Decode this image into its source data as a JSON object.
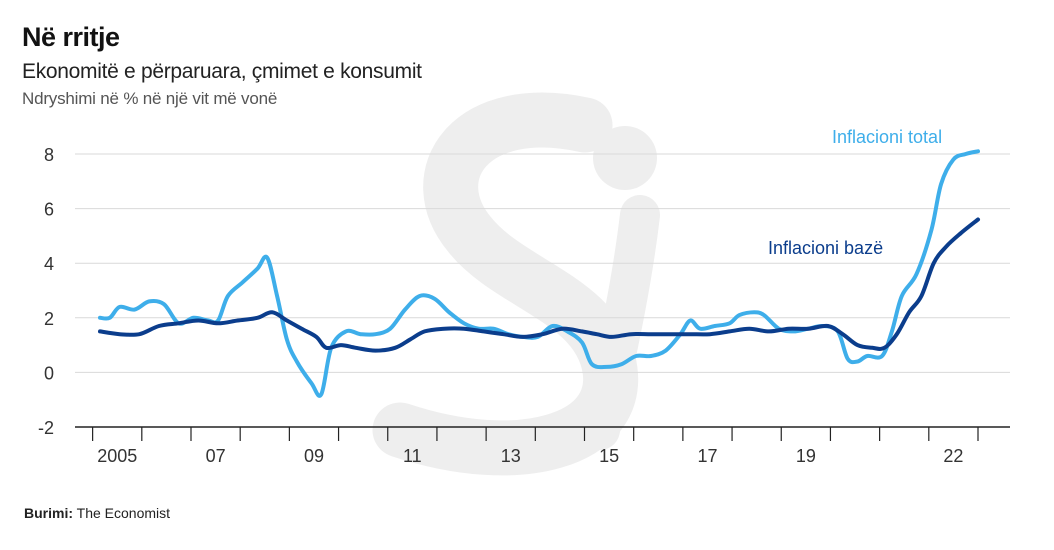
{
  "header": {
    "title": "Në rritje",
    "subtitle": "Ekonomitë e përparuara, çmimet e konsumit",
    "unit_label": "Ndryshimi në % në një vit më vonë"
  },
  "source": {
    "label": "Burimi:",
    "text": "The Economist"
  },
  "colors": {
    "total": "#3eaeea",
    "core": "#0b3d8c",
    "grid": "#d9d9d9",
    "axis": "#222222",
    "watermark": "#ececec"
  },
  "chart_data": {
    "type": "line",
    "title": "Në rritje",
    "subtitle": "Ekonomitë e përparuara, çmimet e konsumit",
    "ylabel": "Ndryshimi në % në një vit më vonë",
    "xlabel": "",
    "ylim": [
      -2,
      8
    ],
    "yticks": [
      -2,
      0,
      2,
      4,
      6,
      8
    ],
    "xlim": [
      2004.0,
      2022.9
    ],
    "xtick_positions": [
      2005,
      2007,
      2009,
      2011,
      2013,
      2015,
      2017,
      2019,
      2021,
      2022
    ],
    "xtick_labels": [
      {
        "x": 2005,
        "label": "2005"
      },
      {
        "x": 2007,
        "label": "07"
      },
      {
        "x": 2009,
        "label": "09"
      },
      {
        "x": 2011,
        "label": "11"
      },
      {
        "x": 2013,
        "label": "13"
      },
      {
        "x": 2015,
        "label": "15"
      },
      {
        "x": 2017,
        "label": "17"
      },
      {
        "x": 2019,
        "label": "19"
      },
      {
        "x": 2022,
        "label": "22"
      }
    ],
    "grid": true,
    "series": [
      {
        "name": "Inflacioni total",
        "key": "total",
        "points": [
          [
            2005.0,
            2.0
          ],
          [
            2005.2,
            2.0
          ],
          [
            2005.4,
            2.4
          ],
          [
            2005.7,
            2.3
          ],
          [
            2006.0,
            2.6
          ],
          [
            2006.3,
            2.5
          ],
          [
            2006.6,
            1.8
          ],
          [
            2006.9,
            2.0
          ],
          [
            2007.2,
            1.9
          ],
          [
            2007.4,
            1.9
          ],
          [
            2007.6,
            2.8
          ],
          [
            2007.9,
            3.3
          ],
          [
            2008.2,
            3.8
          ],
          [
            2008.4,
            4.2
          ],
          [
            2008.6,
            2.8
          ],
          [
            2008.8,
            1.2
          ],
          [
            2009.0,
            0.4
          ],
          [
            2009.3,
            -0.4
          ],
          [
            2009.5,
            -0.8
          ],
          [
            2009.7,
            0.9
          ],
          [
            2010.0,
            1.5
          ],
          [
            2010.3,
            1.4
          ],
          [
            2010.6,
            1.4
          ],
          [
            2010.9,
            1.6
          ],
          [
            2011.2,
            2.3
          ],
          [
            2011.5,
            2.8
          ],
          [
            2011.8,
            2.7
          ],
          [
            2012.1,
            2.2
          ],
          [
            2012.4,
            1.8
          ],
          [
            2012.7,
            1.6
          ],
          [
            2013.0,
            1.6
          ],
          [
            2013.3,
            1.4
          ],
          [
            2013.6,
            1.3
          ],
          [
            2013.9,
            1.3
          ],
          [
            2014.2,
            1.7
          ],
          [
            2014.5,
            1.5
          ],
          [
            2014.8,
            1.1
          ],
          [
            2015.0,
            0.3
          ],
          [
            2015.3,
            0.2
          ],
          [
            2015.6,
            0.3
          ],
          [
            2015.9,
            0.6
          ],
          [
            2016.2,
            0.6
          ],
          [
            2016.5,
            0.8
          ],
          [
            2016.8,
            1.4
          ],
          [
            2017.0,
            1.9
          ],
          [
            2017.2,
            1.6
          ],
          [
            2017.5,
            1.7
          ],
          [
            2017.8,
            1.8
          ],
          [
            2018.0,
            2.1
          ],
          [
            2018.3,
            2.2
          ],
          [
            2018.5,
            2.1
          ],
          [
            2018.8,
            1.6
          ],
          [
            2019.1,
            1.5
          ],
          [
            2019.4,
            1.6
          ],
          [
            2019.7,
            1.7
          ],
          [
            2020.0,
            1.5
          ],
          [
            2020.2,
            0.5
          ],
          [
            2020.4,
            0.4
          ],
          [
            2020.6,
            0.6
          ],
          [
            2020.9,
            0.6
          ],
          [
            2021.1,
            1.5
          ],
          [
            2021.3,
            2.8
          ],
          [
            2021.6,
            3.6
          ],
          [
            2021.9,
            5.2
          ],
          [
            2022.1,
            6.9
          ],
          [
            2022.35,
            7.8
          ],
          [
            2022.6,
            8.0
          ],
          [
            2022.85,
            8.1
          ]
        ]
      },
      {
        "name": "Inflacioni bazë",
        "key": "core",
        "points": [
          [
            2005.0,
            1.5
          ],
          [
            2005.4,
            1.4
          ],
          [
            2005.8,
            1.4
          ],
          [
            2006.2,
            1.7
          ],
          [
            2006.6,
            1.8
          ],
          [
            2007.0,
            1.9
          ],
          [
            2007.4,
            1.8
          ],
          [
            2007.8,
            1.9
          ],
          [
            2008.2,
            2.0
          ],
          [
            2008.5,
            2.2
          ],
          [
            2008.8,
            1.9
          ],
          [
            2009.1,
            1.6
          ],
          [
            2009.4,
            1.3
          ],
          [
            2009.6,
            0.9
          ],
          [
            2009.9,
            1.0
          ],
          [
            2010.2,
            0.9
          ],
          [
            2010.6,
            0.8
          ],
          [
            2011.0,
            0.9
          ],
          [
            2011.3,
            1.2
          ],
          [
            2011.6,
            1.5
          ],
          [
            2012.0,
            1.6
          ],
          [
            2012.4,
            1.6
          ],
          [
            2012.8,
            1.5
          ],
          [
            2013.2,
            1.4
          ],
          [
            2013.6,
            1.3
          ],
          [
            2014.0,
            1.4
          ],
          [
            2014.4,
            1.6
          ],
          [
            2014.8,
            1.5
          ],
          [
            2015.1,
            1.4
          ],
          [
            2015.4,
            1.3
          ],
          [
            2015.8,
            1.4
          ],
          [
            2016.2,
            1.4
          ],
          [
            2016.6,
            1.4
          ],
          [
            2017.0,
            1.4
          ],
          [
            2017.4,
            1.4
          ],
          [
            2017.8,
            1.5
          ],
          [
            2018.2,
            1.6
          ],
          [
            2018.6,
            1.5
          ],
          [
            2019.0,
            1.6
          ],
          [
            2019.4,
            1.6
          ],
          [
            2019.8,
            1.7
          ],
          [
            2020.1,
            1.4
          ],
          [
            2020.4,
            1.0
          ],
          [
            2020.7,
            0.9
          ],
          [
            2020.95,
            0.9
          ],
          [
            2021.2,
            1.4
          ],
          [
            2021.45,
            2.2
          ],
          [
            2021.7,
            2.8
          ],
          [
            2021.95,
            4.0
          ],
          [
            2022.2,
            4.6
          ],
          [
            2022.5,
            5.1
          ],
          [
            2022.85,
            5.6
          ]
        ]
      }
    ],
    "annotations": [
      {
        "series": "total",
        "text": "Inflacioni total"
      },
      {
        "series": "core",
        "text": "Inflacioni bazë"
      }
    ]
  }
}
